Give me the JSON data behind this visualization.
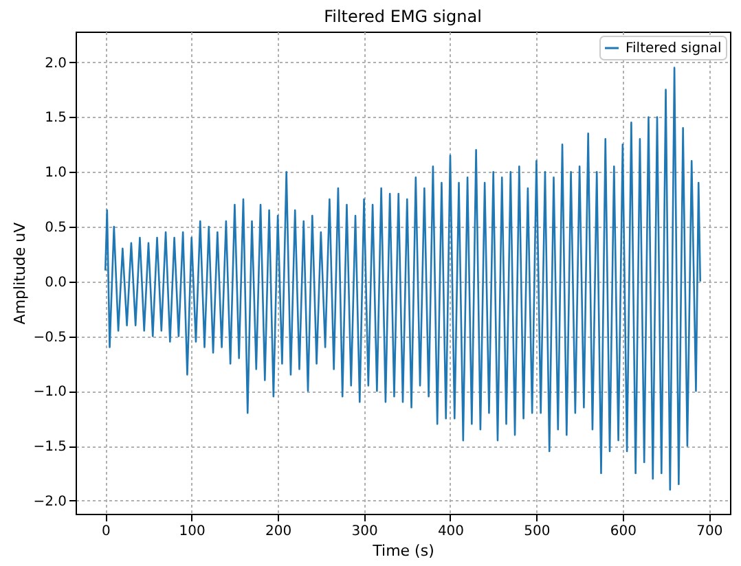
{
  "chart_data": {
    "type": "line",
    "title": "Filtered EMG signal",
    "xlabel": "Time (s)",
    "ylabel": "Amplitude uV",
    "x": [
      0,
      2,
      5,
      10,
      15,
      20,
      25,
      30,
      35,
      40,
      45,
      50,
      55,
      60,
      65,
      70,
      75,
      80,
      85,
      90,
      95,
      100,
      105,
      110,
      115,
      120,
      125,
      130,
      135,
      140,
      145,
      150,
      155,
      160,
      165,
      170,
      175,
      180,
      185,
      190,
      195,
      200,
      205,
      210,
      215,
      220,
      225,
      230,
      235,
      240,
      245,
      250,
      255,
      260,
      265,
      270,
      275,
      280,
      285,
      290,
      295,
      300,
      305,
      310,
      315,
      320,
      325,
      330,
      335,
      340,
      345,
      350,
      355,
      360,
      365,
      370,
      375,
      380,
      385,
      390,
      395,
      400,
      405,
      410,
      415,
      420,
      425,
      430,
      435,
      440,
      445,
      450,
      455,
      460,
      465,
      470,
      475,
      480,
      485,
      490,
      495,
      500,
      505,
      510,
      515,
      520,
      525,
      530,
      535,
      540,
      545,
      550,
      555,
      560,
      565,
      570,
      575,
      580,
      585,
      590,
      595,
      600,
      605,
      610,
      615,
      620,
      625,
      630,
      635,
      640,
      645,
      650,
      655,
      660,
      665,
      670,
      675,
      680,
      685,
      688,
      690
    ],
    "series": [
      {
        "name": "Filtered signal",
        "color": "#1f77b4",
        "values": [
          0.1,
          0.65,
          -0.6,
          0.5,
          -0.45,
          0.3,
          -0.4,
          0.35,
          -0.4,
          0.4,
          -0.45,
          0.35,
          -0.5,
          0.4,
          -0.45,
          0.45,
          -0.55,
          0.4,
          -0.5,
          0.45,
          -0.85,
          0.4,
          -0.55,
          0.55,
          -0.6,
          0.5,
          -0.65,
          0.45,
          -0.6,
          0.55,
          -0.75,
          0.7,
          -0.7,
          0.75,
          -1.2,
          0.55,
          -0.8,
          0.7,
          -0.9,
          0.65,
          -1.05,
          0.6,
          -0.75,
          1.0,
          -0.85,
          0.65,
          -0.8,
          0.55,
          -1.0,
          0.6,
          -0.75,
          0.45,
          -0.6,
          0.75,
          -0.8,
          0.85,
          -1.05,
          0.7,
          -0.95,
          0.6,
          -1.1,
          0.75,
          -0.95,
          0.7,
          -1.0,
          0.85,
          -1.1,
          0.8,
          -1.05,
          0.8,
          -1.1,
          0.75,
          -1.15,
          0.95,
          -0.95,
          0.85,
          -1.05,
          1.05,
          -1.3,
          0.9,
          -1.25,
          1.15,
          -1.25,
          0.9,
          -1.45,
          0.95,
          -1.3,
          1.2,
          -1.35,
          0.9,
          -1.2,
          1.0,
          -1.45,
          0.95,
          -1.3,
          1.0,
          -1.4,
          1.05,
          -1.25,
          0.85,
          -1.2,
          1.1,
          -1.2,
          1.0,
          -1.55,
          0.95,
          -1.35,
          1.25,
          -1.4,
          1.0,
          -1.2,
          1.05,
          -1.15,
          1.35,
          -1.35,
          1.0,
          -1.75,
          1.3,
          -1.55,
          1.05,
          -1.45,
          1.25,
          -1.55,
          1.45,
          -1.75,
          1.3,
          -1.65,
          1.5,
          -1.8,
          1.5,
          -1.75,
          1.75,
          -1.9,
          1.95,
          -1.85,
          1.4,
          -1.5,
          1.1,
          -1.0,
          0.9,
          0.0
        ]
      }
    ],
    "xlim": [
      -34.5,
      724.5
    ],
    "xticks": [
      0,
      100,
      200,
      300,
      400,
      500,
      600,
      700
    ],
    "ylim": [
      -2.12,
      2.28
    ],
    "yticks": [
      {
        "value": -2,
        "label": "−2.0"
      },
      {
        "value": -1.5,
        "label": "−1.5"
      },
      {
        "value": -1,
        "label": "−1.0"
      },
      {
        "value": -0.5,
        "label": "−0.5"
      },
      {
        "value": 0,
        "label": "0.0"
      },
      {
        "value": 0.5,
        "label": "0.5"
      },
      {
        "value": 1,
        "label": "1.0"
      },
      {
        "value": 1.5,
        "label": "1.5"
      },
      {
        "value": 2,
        "label": "2.0"
      }
    ],
    "grid": true,
    "legend": "top right",
    "line_style": "solid"
  }
}
